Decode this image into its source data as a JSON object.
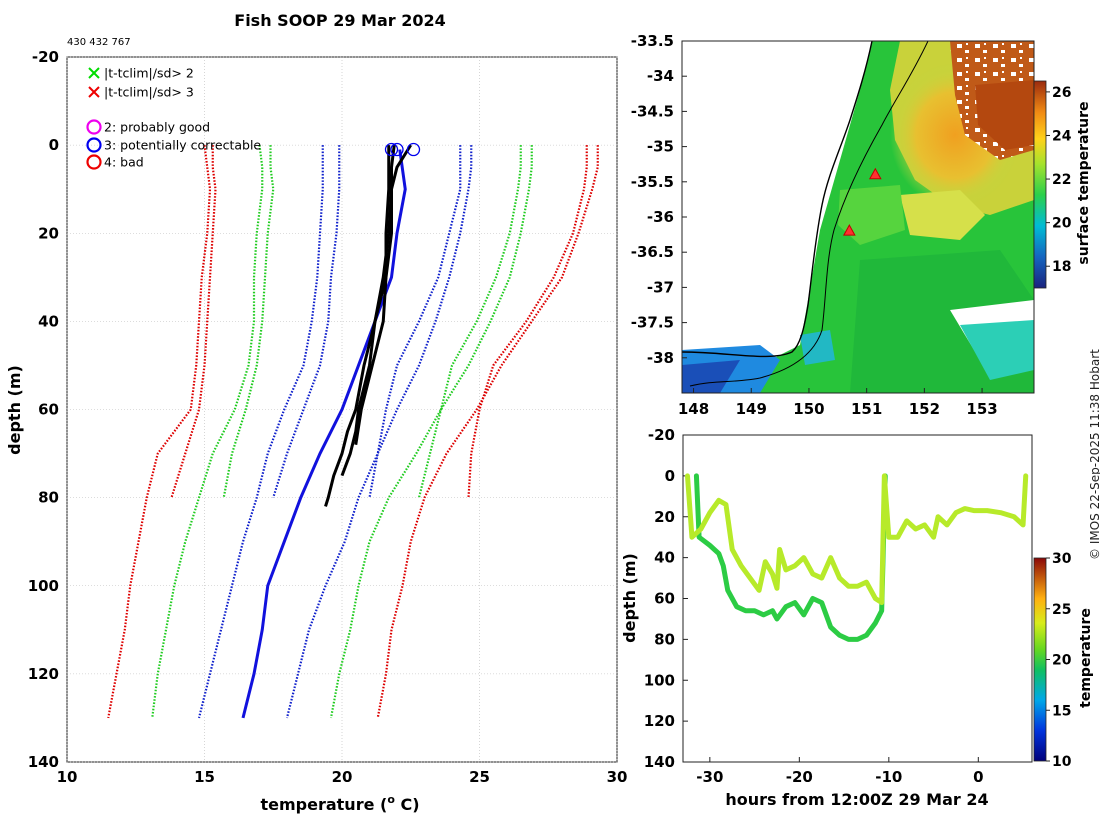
{
  "title": "Fish SOOP 29 Mar 2024",
  "ids_text": "430 432 767",
  "credit": "© IMOS 22-Sep-2025 11:38 Hobart",
  "chart_data": [
    {
      "name": "profile",
      "type": "line",
      "xlabel": "temperature (°C)",
      "xlabel_parts": {
        "pre": "temperature (",
        "sup": "o",
        "post": " C)"
      },
      "ylabel": "depth (m)",
      "xlim": [
        10,
        30
      ],
      "ylim": [
        140,
        -20
      ],
      "xticks": [
        10,
        15,
        20,
        25,
        30
      ],
      "yticks": [
        -20,
        0,
        20,
        40,
        60,
        80,
        100,
        120,
        140
      ],
      "grid": true,
      "legend": {
        "placement": "top-left",
        "entries": [
          {
            "marker": "x",
            "color": "#00dd00",
            "label": "|t-tclim|/sd> 2"
          },
          {
            "marker": "x",
            "color": "#ee0000",
            "label": "|t-tclim|/sd> 3"
          },
          {
            "marker": "o",
            "color": "#ee00ee",
            "label": "2: probably good"
          },
          {
            "marker": "o",
            "color": "#0000ee",
            "label": "3: potentially correctable"
          },
          {
            "marker": "o",
            "color": "#ee0000",
            "label": "4: bad"
          }
        ]
      },
      "climatology_depths": [
        0,
        5,
        10,
        20,
        30,
        40,
        50,
        60,
        70,
        80,
        90,
        100,
        110,
        120,
        130
      ],
      "climatology_series": [
        {
          "name": "-3sd deep",
          "color": "#dd0000",
          "values": [
            15.0,
            15.1,
            15.2,
            15.1,
            14.9,
            14.8,
            14.7,
            14.5,
            13.3,
            12.9,
            12.6,
            12.3,
            12.1,
            11.8,
            11.5
          ]
        },
        {
          "name": "-3sd shallow",
          "color": "#dd0000",
          "values": [
            15.3,
            15.3,
            15.4,
            15.3,
            15.2,
            15.1,
            15.0,
            14.8,
            14.3,
            13.8
          ]
        },
        {
          "name": "-2sd deep",
          "color": "#22cc22",
          "values": [
            17.0,
            17.1,
            17.1,
            16.9,
            16.8,
            16.8,
            16.6,
            16.1,
            15.3,
            14.8,
            14.3,
            13.9,
            13.6,
            13.3,
            13.1
          ]
        },
        {
          "name": "-2sd shallow",
          "color": "#22cc22",
          "values": [
            17.4,
            17.4,
            17.5,
            17.3,
            17.2,
            17.1,
            16.9,
            16.5,
            16.0,
            15.7
          ]
        },
        {
          "name": "-1sd deep",
          "color": "#1122cc",
          "values": [
            19.3,
            19.3,
            19.3,
            19.2,
            19.1,
            18.9,
            18.6,
            17.9,
            17.3,
            16.9,
            16.4,
            16.0,
            15.6,
            15.2,
            14.8
          ]
        },
        {
          "name": "-1sd shallow",
          "color": "#1122cc",
          "values": [
            19.9,
            19.9,
            19.9,
            19.8,
            19.6,
            19.5,
            19.2,
            18.6,
            18.0,
            17.5
          ]
        },
        {
          "name": "+1sd shallow",
          "color": "#1122cc",
          "values": [
            24.3,
            24.3,
            24.3,
            23.9,
            23.5,
            22.8,
            22.0,
            21.6,
            21.3,
            21.0
          ]
        },
        {
          "name": "+1sd deep",
          "color": "#1122cc",
          "values": [
            24.7,
            24.7,
            24.6,
            24.3,
            23.9,
            23.4,
            22.8,
            22.0,
            21.3,
            20.6,
            20.1,
            19.4,
            18.8,
            18.4,
            18.0
          ]
        },
        {
          "name": "+2sd shallow",
          "color": "#22cc22",
          "values": [
            26.5,
            26.5,
            26.4,
            26.1,
            25.6,
            24.9,
            24.0,
            23.6,
            23.2,
            22.8
          ]
        },
        {
          "name": "+2sd deep",
          "color": "#22cc22",
          "values": [
            26.9,
            26.9,
            26.8,
            26.5,
            26.1,
            25.4,
            24.6,
            23.6,
            22.7,
            21.7,
            21.0,
            20.6,
            20.3,
            19.9,
            19.6
          ]
        },
        {
          "name": "+3sd shallow",
          "color": "#dd0000",
          "values": [
            28.9,
            28.9,
            28.8,
            28.4,
            27.7,
            26.7,
            25.5,
            25.0,
            24.7,
            24.6
          ]
        },
        {
          "name": "+3sd deep",
          "color": "#dd0000",
          "values": [
            29.3,
            29.3,
            29.1,
            28.6,
            28.0,
            26.9,
            25.8,
            24.9,
            23.8,
            23.0,
            22.5,
            22.2,
            21.8,
            21.6,
            21.3
          ]
        }
      ],
      "mean_profile": {
        "name": "climatology mean",
        "color": "#1111dd",
        "depths": [
          1,
          10,
          20,
          30,
          40,
          50,
          60,
          70,
          80,
          90,
          100,
          110,
          120,
          125,
          130
        ],
        "values": [
          22.1,
          22.3,
          22.0,
          21.8,
          21.2,
          20.6,
          20.0,
          19.2,
          18.5,
          17.9,
          17.3,
          17.1,
          16.8,
          16.6,
          16.4
        ]
      },
      "observed_profiles": [
        {
          "color": "#000000",
          "depths": [
            0,
            5,
            10,
            20,
            30,
            40,
            50,
            60,
            65,
            70,
            75,
            80,
            82
          ],
          "values": [
            21.7,
            21.7,
            21.7,
            21.6,
            21.6,
            21.2,
            20.8,
            20.5,
            20.2,
            20.0,
            19.7,
            19.5,
            19.4
          ]
        },
        {
          "color": "#000000",
          "depths": [
            0,
            5,
            10,
            20,
            30,
            40,
            50,
            60,
            65,
            70,
            75
          ],
          "values": [
            21.9,
            21.8,
            21.8,
            21.7,
            21.5,
            21.2,
            21.0,
            20.6,
            20.5,
            20.3,
            20.0
          ]
        },
        {
          "color": "#000000",
          "depths": [
            0,
            5,
            10,
            20,
            30,
            40,
            50,
            60,
            68
          ],
          "values": [
            22.5,
            22.0,
            21.8,
            21.8,
            21.6,
            21.5,
            21.1,
            20.7,
            20.5
          ]
        }
      ],
      "flag_markers": [
        {
          "x": 21.8,
          "depth": 1,
          "color": "#0000ee"
        },
        {
          "x": 22.0,
          "depth": 1,
          "color": "#0000ee"
        },
        {
          "x": 22.6,
          "depth": 1,
          "color": "#0000ee"
        }
      ]
    },
    {
      "name": "sst-map",
      "type": "heatmap",
      "xticks": [
        148,
        149,
        150,
        151,
        152,
        153
      ],
      "yticks": [
        -33.5,
        -34,
        -34.5,
        -35,
        -35.5,
        -36,
        -36.5,
        -37,
        -37.5,
        -38
      ],
      "xlim": [
        147.8,
        153.9
      ],
      "ylim": [
        -38.5,
        -33.5
      ],
      "colorbar": {
        "label": "surface temperature",
        "ticks": [
          18,
          20,
          22,
          24,
          26
        ],
        "range": [
          17,
          26.5
        ]
      },
      "profile_locations": [
        {
          "lon": 151.15,
          "lat": -35.4
        },
        {
          "lon": 150.7,
          "lat": -36.2
        }
      ]
    },
    {
      "name": "depth-time",
      "type": "scatter",
      "xlabel": "hours from 12:00Z 29 Mar 24",
      "ylabel": "depth (m)",
      "xlim": [
        -33,
        6
      ],
      "ylim": [
        140,
        -20
      ],
      "xticks": [
        -30,
        -20,
        -10,
        0
      ],
      "yticks": [
        -20,
        0,
        20,
        40,
        60,
        80,
        100,
        120,
        140
      ],
      "colorbar": {
        "label": "temperature",
        "ticks": [
          10,
          15,
          20,
          25,
          30
        ],
        "range": [
          10,
          30
        ]
      },
      "tracks": [
        {
          "name": "shallow",
          "points": [
            [
              -32.5,
              0
            ],
            [
              -32.0,
              30
            ],
            [
              -31.0,
              26
            ],
            [
              -30.0,
              18
            ],
            [
              -29.0,
              12
            ],
            [
              -28.2,
              14
            ],
            [
              -27.5,
              36
            ],
            [
              -26.5,
              44
            ],
            [
              -25.5,
              50
            ],
            [
              -24.5,
              56
            ],
            [
              -23.8,
              42
            ],
            [
              -23.0,
              48
            ],
            [
              -22.5,
              55
            ],
            [
              -22.2,
              36
            ],
            [
              -21.5,
              46
            ],
            [
              -20.5,
              44
            ],
            [
              -19.5,
              40
            ],
            [
              -18.5,
              48
            ],
            [
              -17.5,
              50
            ],
            [
              -16.5,
              40
            ],
            [
              -15.5,
              50
            ],
            [
              -14.5,
              54
            ],
            [
              -13.5,
              54
            ],
            [
              -12.5,
              52
            ],
            [
              -11.5,
              60
            ],
            [
              -10.8,
              62
            ],
            [
              -10.5,
              0
            ],
            [
              -10.0,
              30
            ],
            [
              -9.0,
              30
            ],
            [
              -8.0,
              22
            ],
            [
              -7.0,
              26
            ],
            [
              -6.0,
              24
            ],
            [
              -5.0,
              30
            ],
            [
              -4.5,
              20
            ],
            [
              -3.5,
              24
            ],
            [
              -2.5,
              18
            ],
            [
              -1.5,
              16
            ],
            [
              -0.5,
              17
            ],
            [
              1.0,
              17
            ],
            [
              2.5,
              18
            ],
            [
              4.0,
              20
            ],
            [
              5.0,
              24
            ],
            [
              5.3,
              0
            ]
          ]
        },
        {
          "name": "deep",
          "points": [
            [
              -31.5,
              0
            ],
            [
              -31.2,
              30
            ],
            [
              -30.0,
              34
            ],
            [
              -29.0,
              38
            ],
            [
              -28.5,
              44
            ],
            [
              -28.0,
              56
            ],
            [
              -27.0,
              64
            ],
            [
              -26.0,
              66
            ],
            [
              -25.0,
              66
            ],
            [
              -24.0,
              68
            ],
            [
              -23.0,
              66
            ],
            [
              -22.5,
              70
            ],
            [
              -21.5,
              64
            ],
            [
              -20.5,
              62
            ],
            [
              -19.5,
              68
            ],
            [
              -18.5,
              60
            ],
            [
              -17.5,
              62
            ],
            [
              -16.5,
              74
            ],
            [
              -15.5,
              78
            ],
            [
              -14.5,
              80
            ],
            [
              -13.5,
              80
            ],
            [
              -12.5,
              78
            ],
            [
              -11.5,
              72
            ],
            [
              -10.8,
              66
            ],
            [
              -10.4,
              0
            ]
          ]
        }
      ]
    }
  ]
}
